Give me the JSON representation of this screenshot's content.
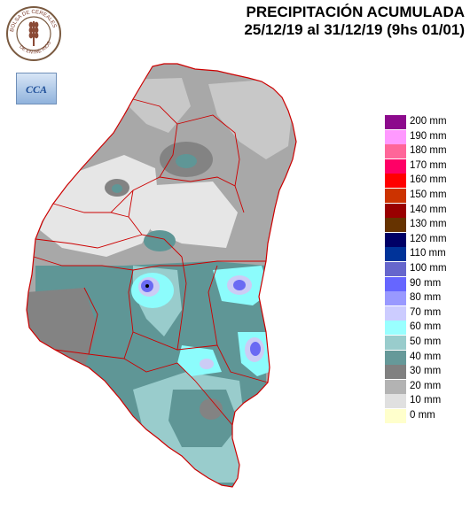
{
  "header": {
    "title": "PRECIPITACIÓN ACUMULADA",
    "subtitle": "25/12/19 al 31/12/19 (9hs 01/01)"
  },
  "seal": {
    "text_top": "BOLSA DE CEREALES",
    "text_bottom": "DE ENTRE RIOS"
  },
  "cca_logo": {
    "text": "CCA"
  },
  "colors": {
    "c10": "#e6e6e6",
    "c20": "#c8c8c8",
    "c30": "#a8a8a8",
    "c40": "#838383",
    "c50": "#5f9696",
    "c60": "#99cccc",
    "c70": "#8cfcfc",
    "c80": "#ccccf5",
    "c90": "#9c9cf0",
    "c100": "#6a6af3",
    "border": "#cc0000"
  },
  "legend": {
    "items": [
      {
        "label": "200 mm",
        "color": "#8c0a8c"
      },
      {
        "label": "190 mm",
        "color": "#ff99ff"
      },
      {
        "label": "180 mm",
        "color": "#ff6699"
      },
      {
        "label": "170 mm",
        "color": "#ff0066"
      },
      {
        "label": "160 mm",
        "color": "#ff0000"
      },
      {
        "label": "150 mm",
        "color": "#cc3300"
      },
      {
        "label": "140 mm",
        "color": "#990000"
      },
      {
        "label": "130 mm",
        "color": "#663300"
      },
      {
        "label": "120 mm",
        "color": "#000066"
      },
      {
        "label": "110 mm",
        "color": "#003399"
      },
      {
        "label": "100 mm",
        "color": "#6666cc"
      },
      {
        "label": "90 mm",
        "color": "#6666ff"
      },
      {
        "label": "80 mm",
        "color": "#9999ff"
      },
      {
        "label": "70 mm",
        "color": "#ccccff"
      },
      {
        "label": "60 mm",
        "color": "#99ffff"
      },
      {
        "label": "50 mm",
        "color": "#99cccc"
      },
      {
        "label": "40 mm",
        "color": "#669999"
      },
      {
        "label": "30 mm",
        "color": "#808080"
      },
      {
        "label": "20 mm",
        "color": "#b3b3b3"
      },
      {
        "label": "10 mm",
        "color": "#e0e0e0"
      },
      {
        "label": "0 mm",
        "color": "#ffffcc"
      }
    ]
  }
}
